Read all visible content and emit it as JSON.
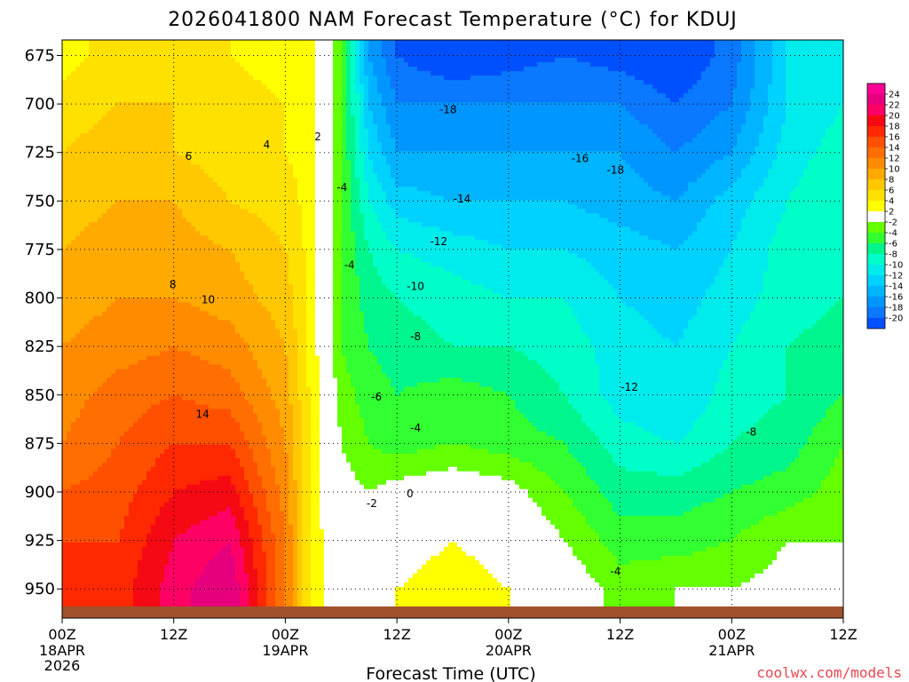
{
  "chart_data": {
    "type": "heatmap",
    "title": "2026041800 NAM Forecast Temperature (°C) for KDUJ",
    "xlabel": "Forecast Time (UTC)",
    "ylabel": "",
    "y_axis": {
      "unit": "hPa",
      "inverted": true,
      "range": [
        965,
        667
      ],
      "ticks": [
        675,
        700,
        725,
        750,
        775,
        800,
        825,
        850,
        875,
        900,
        925,
        950
      ]
    },
    "x_axis": {
      "unit": "forecast hour",
      "range": [
        0,
        84
      ],
      "ticks": [
        {
          "hour": 0,
          "label": "00Z",
          "date": "18APR",
          "year": "2026"
        },
        {
          "hour": 12,
          "label": "12Z",
          "date": "",
          "year": ""
        },
        {
          "hour": 24,
          "label": "00Z",
          "date": "19APR",
          "year": ""
        },
        {
          "hour": 36,
          "label": "12Z",
          "date": "",
          "year": ""
        },
        {
          "hour": 48,
          "label": "00Z",
          "date": "20APR",
          "year": ""
        },
        {
          "hour": 60,
          "label": "12Z",
          "date": "",
          "year": ""
        },
        {
          "hour": 72,
          "label": "00Z",
          "date": "21APR",
          "year": ""
        },
        {
          "hour": 84,
          "label": "12Z",
          "date": "",
          "year": ""
        }
      ]
    },
    "grid": "dotted",
    "colorbar": {
      "levels": [
        -22,
        -20,
        -18,
        -16,
        -14,
        -12,
        -10,
        -8,
        -6,
        -4,
        -2,
        2,
        4,
        6,
        8,
        10,
        12,
        14,
        16,
        18,
        20,
        22,
        24,
        26
      ],
      "labels": [
        "24",
        "22",
        "20",
        "18",
        "16",
        "14",
        "12",
        "10",
        "8",
        "6",
        "4",
        "2",
        "-2",
        "-4",
        "-6",
        "-8",
        "-10",
        "-12",
        "-14",
        "-16",
        "-18",
        "-20"
      ],
      "colors": [
        "#0050ff",
        "#0a78ff",
        "#0096ff",
        "#00b4ff",
        "#00d2ff",
        "#00ebeb",
        "#00ffc8",
        "#00f58c",
        "#32ff32",
        "#64ff00",
        "#ffffff",
        "#ffff00",
        "#ffe100",
        "#ffc800",
        "#ffaa00",
        "#ff8c00",
        "#ff6e00",
        "#ff5000",
        "#ff2800",
        "#f50a14",
        "#ff0064",
        "#e6007d",
        "#ff0096"
      ]
    },
    "terrain_color": "#a0522d",
    "temperature_grid": {
      "x_hours": [
        0,
        6,
        12,
        18,
        24,
        27,
        30,
        33,
        36,
        42,
        48,
        54,
        60,
        66,
        72,
        78,
        84
      ],
      "pressure_levels": [
        675,
        700,
        725,
        750,
        775,
        800,
        825,
        850,
        875,
        900,
        925,
        950,
        965
      ],
      "values_degC": [
        [
          3,
          5,
          5,
          4,
          3,
          2,
          -4,
          -16,
          -20,
          -22,
          -21,
          -20,
          -21,
          -22,
          -19,
          -12,
          -10
        ],
        [
          5,
          6,
          6,
          5,
          4,
          3,
          -4,
          -14,
          -18,
          -18,
          -18,
          -18,
          -18,
          -20,
          -18,
          -12,
          -10
        ],
        [
          6,
          7,
          6,
          5,
          4,
          3,
          -4,
          -12,
          -16,
          -16,
          -16,
          -16,
          -16,
          -18,
          -16,
          -11,
          -9
        ],
        [
          7,
          8,
          8,
          6,
          5,
          3,
          -4,
          -10,
          -13,
          -14,
          -14,
          -14,
          -15,
          -16,
          -13,
          -10,
          -8
        ],
        [
          8,
          9,
          9,
          8,
          6,
          3,
          -4,
          -8,
          -10,
          -11,
          -12,
          -12,
          -13,
          -14,
          -12,
          -9,
          -8
        ],
        [
          9,
          10,
          10,
          9,
          7,
          3,
          -4,
          -7,
          -8,
          -9,
          -10,
          -10,
          -12,
          -13,
          -11,
          -9,
          -8
        ],
        [
          10,
          11,
          12,
          11,
          8,
          3,
          -4,
          -6,
          -7,
          -8,
          -8,
          -9,
          -11,
          -12,
          -10,
          -8,
          -7
        ],
        [
          11,
          13,
          14,
          13,
          9,
          3,
          -3,
          -5,
          -6,
          -5,
          -6,
          -8,
          -11,
          -12,
          -9,
          -8,
          -6
        ],
        [
          12,
          14,
          16,
          16,
          10,
          3,
          -2,
          -4,
          -5,
          -4,
          -5,
          -6,
          -9,
          -10,
          -8,
          -7,
          -4
        ],
        [
          14,
          15,
          18,
          19,
          11,
          3,
          -1,
          -2,
          -1,
          0,
          -1,
          -4,
          -7,
          -7,
          -6,
          -5,
          -3
        ],
        [
          16,
          16,
          20,
          22,
          12,
          3,
          0,
          -1,
          1,
          2,
          1,
          -2,
          -5,
          -5,
          -4,
          -2,
          -2
        ],
        [
          17,
          17,
          21,
          24,
          12,
          3,
          0,
          0,
          2,
          3,
          2,
          0,
          -3,
          -2,
          -2,
          -1,
          0
        ],
        [
          17,
          17,
          21,
          24,
          12,
          3,
          0,
          0,
          2,
          3,
          2,
          0,
          -3,
          -2,
          -2,
          -1,
          0
        ]
      ]
    },
    "contour_labels": [
      {
        "text": "-18",
        "hour": 41.5,
        "p": 703
      },
      {
        "text": "-16",
        "hour": 55.7,
        "p": 728
      },
      {
        "text": "-18",
        "hour": 59.5,
        "p": 734
      },
      {
        "text": "-14",
        "hour": 43.0,
        "p": 749
      },
      {
        "text": "-12",
        "hour": 40.5,
        "p": 771
      },
      {
        "text": "-10",
        "hour": 38.0,
        "p": 794
      },
      {
        "text": "-8",
        "hour": 38.0,
        "p": 820
      },
      {
        "text": "-6",
        "hour": 33.8,
        "p": 851
      },
      {
        "text": "-4",
        "hour": 38.0,
        "p": 867
      },
      {
        "text": "-2",
        "hour": 33.3,
        "p": 906
      },
      {
        "text": "0",
        "hour": 37.4,
        "p": 901
      },
      {
        "text": "-4",
        "hour": 30.1,
        "p": 743
      },
      {
        "text": "-4",
        "hour": 30.9,
        "p": 783
      },
      {
        "text": "-12",
        "hour": 61.0,
        "p": 846
      },
      {
        "text": "-8",
        "hour": 74.1,
        "p": 869
      },
      {
        "text": "-4",
        "hour": 59.5,
        "p": 941
      },
      {
        "text": "2",
        "hour": 27.5,
        "p": 717
      },
      {
        "text": "4",
        "hour": 22.0,
        "p": 721
      },
      {
        "text": "6",
        "hour": 13.6,
        "p": 727
      },
      {
        "text": "8",
        "hour": 11.9,
        "p": 793
      },
      {
        "text": "10",
        "hour": 15.7,
        "p": 801
      },
      {
        "text": "14",
        "hour": 15.1,
        "p": 860
      }
    ]
  },
  "footer": {
    "credit": "coolwx.com/models"
  }
}
